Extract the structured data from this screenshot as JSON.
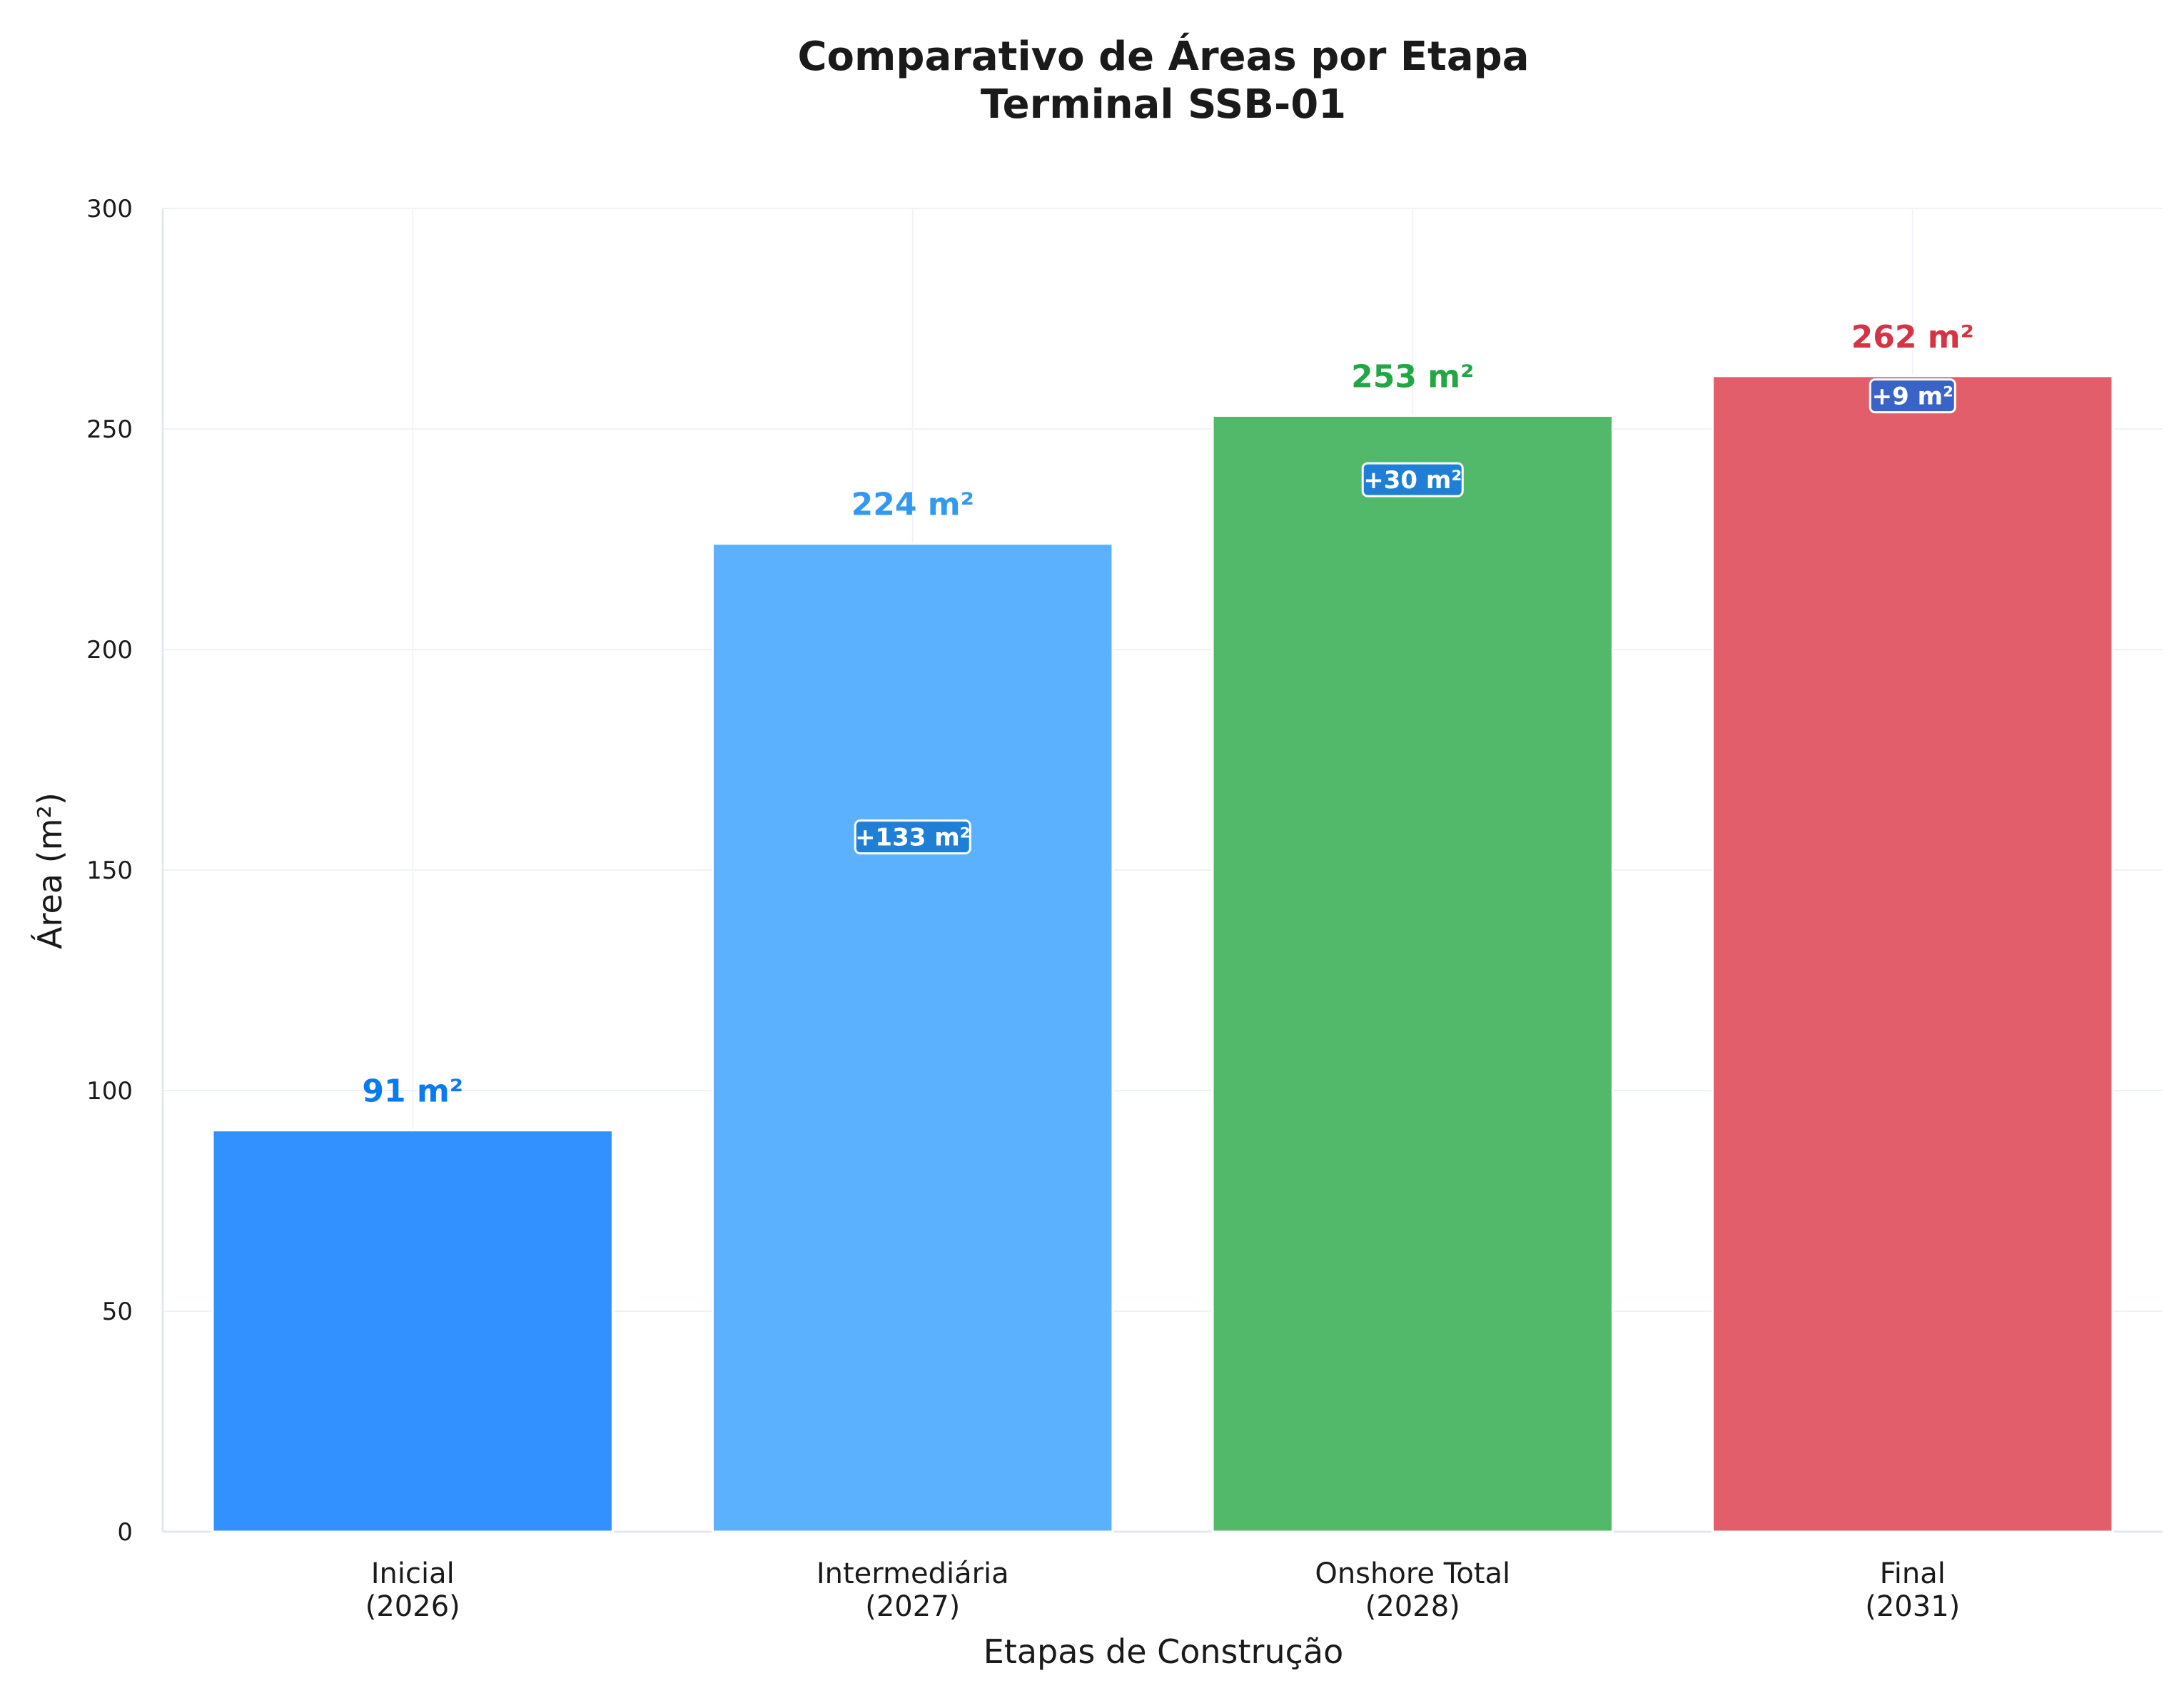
{
  "chart_data": {
    "type": "bar",
    "title": [
      "Comparativo de Áreas por Etapa",
      "Terminal SSB-01"
    ],
    "xlabel": "Etapas de Construção",
    "ylabel": "Área (m²)",
    "ylim": [
      0,
      300
    ],
    "yticks": [
      "0",
      "50",
      "100",
      "150",
      "200",
      "250",
      "300"
    ],
    "grid": true,
    "categories": [
      [
        "Inicial",
        "(2026)"
      ],
      [
        "Intermediária",
        "(2027)"
      ],
      [
        "Onshore Total",
        "(2028)"
      ],
      [
        "Final",
        "(2031)"
      ]
    ],
    "values": [
      91,
      224,
      253,
      262
    ],
    "value_labels": [
      "91 m²",
      "224 m²",
      "253 m²",
      "262 m²"
    ],
    "bar_colors": [
      "#3391ff",
      "#5cb1ff",
      "#53b96a",
      "#e25e6b"
    ],
    "label_colors": [
      "#0a7bef",
      "#3399f0",
      "#22a745",
      "#d53443"
    ],
    "deltas": [
      null,
      {
        "text": "+133 m²",
        "color": "#1f7ed6"
      },
      {
        "text": "+30 m²",
        "color": "#1f7ed6"
      },
      {
        "text": "+9 m²",
        "color": "#3a63c8"
      }
    ]
  }
}
